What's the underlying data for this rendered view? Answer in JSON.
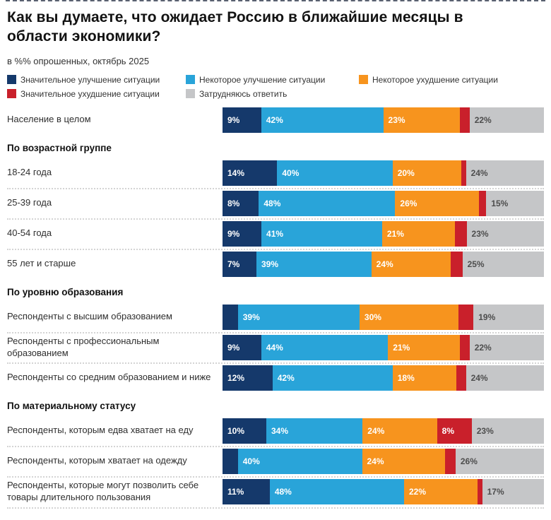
{
  "page": {
    "title": "Как вы думаете, что ожидает Россию в ближайшие месяцы в области экономики?",
    "subtitle": "в %% опрошенных, октябрь 2025"
  },
  "colors": {
    "significant_improvement": "#15396B",
    "some_improvement": "#29A4D9",
    "some_deterioration": "#F7941E",
    "significant_deterioration": "#C9202B",
    "difficult_to_answer": "#C5C6C8",
    "value_label_light": "#FFFFFF",
    "value_label_dark": "#4D4D4D"
  },
  "legend": {
    "items": [
      {
        "label": "Значительное улучшение ситуации",
        "color": "significant_improvement"
      },
      {
        "label": "Некоторое улучшение ситуации",
        "color": "some_improvement"
      },
      {
        "label": "Некоторое ухудшение ситуации",
        "color": "some_deterioration"
      },
      {
        "label": "Значительное ухудшение ситуации",
        "color": "significant_deterioration"
      },
      {
        "label": "Затрудняюсь ответить",
        "color": "difficult_to_answer"
      }
    ]
  },
  "chart_data": {
    "type": "bar",
    "variant": "horizontal_stacked",
    "unit": "%",
    "axis_range": [
      0,
      100
    ],
    "grid": false,
    "legend_position": "top",
    "value_label_min": 7,
    "series_names": [
      "Значительное улучшение ситуации",
      "Некоторое улучшение ситуации",
      "Некоторое ухудшение ситуации",
      "Значительное ухудшение ситуации",
      "Затрудняюсь ответить"
    ],
    "series_colors": [
      "significant_improvement",
      "some_improvement",
      "some_deterioration",
      "significant_deterioration",
      "difficult_to_answer"
    ],
    "groups": [
      {
        "header": "",
        "rows": [
          {
            "label": "Население в целом",
            "values": [
              9,
              42,
              23,
              4,
              22
            ]
          }
        ]
      },
      {
        "header": "По возрастной группе",
        "rows": [
          {
            "label": "18-24 года",
            "values": [
              14,
              40,
              20,
              2,
              24
            ]
          },
          {
            "label": "25-39 года",
            "values": [
              8,
              48,
              26,
              3,
              15
            ]
          },
          {
            "label": "40-54 года",
            "values": [
              9,
              41,
              21,
              5,
              23
            ]
          },
          {
            "label": "55 лет и старше",
            "values": [
              7,
              39,
              24,
              5,
              25
            ]
          }
        ]
      },
      {
        "header": "По уровню образования",
        "rows": [
          {
            "label": "Респонденты с высшим образованием",
            "values": [
              6,
              39,
              30,
              6,
              19
            ]
          },
          {
            "label": "Респонденты с профессиональным образованием",
            "values": [
              9,
              44,
              21,
              4,
              22
            ]
          },
          {
            "label": "Респонденты со средним образованием и ниже",
            "values": [
              12,
              42,
              18,
              4,
              24
            ]
          }
        ]
      },
      {
        "header": "По материальному статусу",
        "rows": [
          {
            "label": "Респонденты, которым едва хватает на еду",
            "values": [
              10,
              34,
              24,
              8,
              23
            ]
          },
          {
            "label": "Респонденты, которым хватает на одежду",
            "values": [
              6,
              40,
              24,
              4,
              26
            ]
          },
          {
            "label": "Респонденты, которые могут позволить себе товары длительного пользования",
            "values": [
              11,
              48,
              22,
              2,
              17
            ]
          }
        ]
      }
    ]
  }
}
